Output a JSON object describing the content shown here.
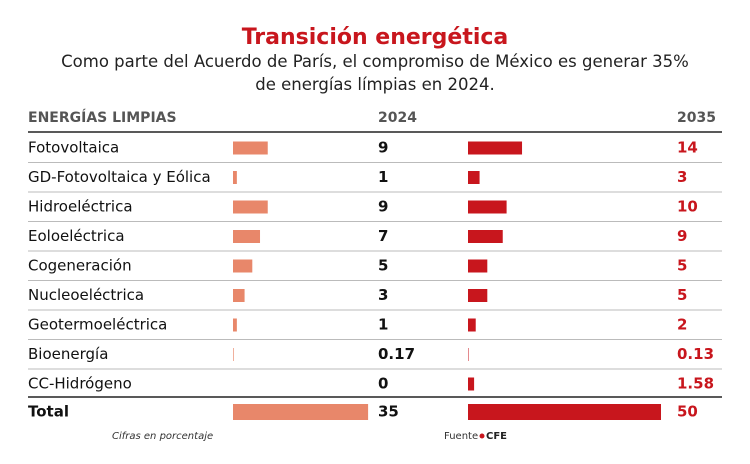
{
  "chart_data": {
    "type": "bar",
    "title": "Transición energética",
    "subtitle": "Como parte del Acuerdo de París, el compromiso de México es generar 35% de energías límpias en 2024.",
    "category_header": "ENERGÍAS LIMPIAS",
    "categories": [
      "Fotovoltaica",
      "GD-Fotovoltaica y Eólica",
      "Hidroeléctrica",
      "Eoloeléctrica",
      "Cogeneración",
      "Nucleoeléctrica",
      "Geotermoeléctrica",
      "Bioenergía",
      "CC-Hidrógeno",
      "Total"
    ],
    "series": [
      {
        "name": "2024",
        "color": "#e8876a",
        "label_color": "#111111",
        "values": [
          9,
          1,
          9,
          7,
          5,
          3,
          1,
          0.17,
          0,
          35
        ]
      },
      {
        "name": "2035",
        "color": "#c8161d",
        "label_color": "#c8161d",
        "values": [
          14,
          3,
          10,
          9,
          5,
          5,
          2,
          0.13,
          1.58,
          50
        ]
      }
    ],
    "note": "Cifras en porcentaje",
    "source_label": "Fuente",
    "source": "CFE"
  }
}
